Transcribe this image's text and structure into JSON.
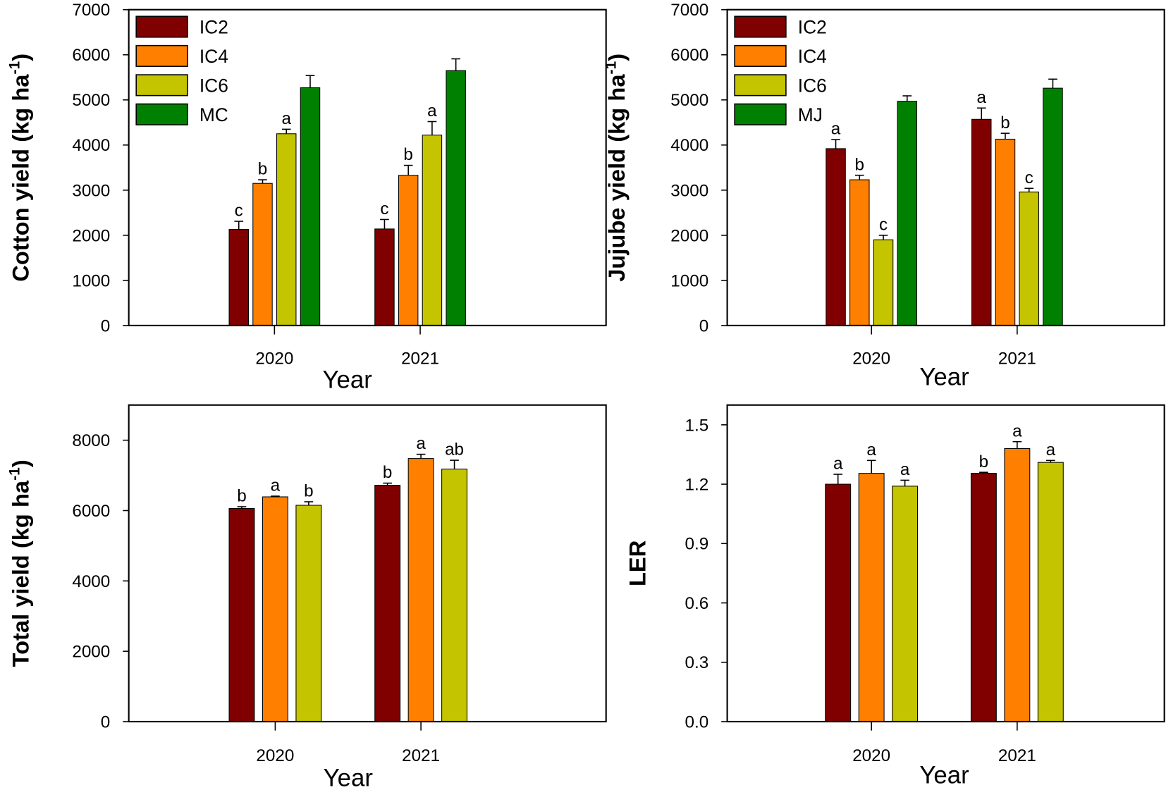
{
  "colors": {
    "IC2": "#800000",
    "IC4": "#ff8000",
    "IC6": "#c4c400",
    "mono": "#008000"
  },
  "chart_data": [
    {
      "type": "bar",
      "id": "cotton",
      "ylabel": "Cotton yield (kg ha",
      "ylabel_sup": "-1",
      "ylabel_end": ")",
      "xlabel": "Year",
      "categories": [
        "2020",
        "2021"
      ],
      "ylim": [
        0,
        7000
      ],
      "yticks": [
        0,
        1000,
        2000,
        3000,
        4000,
        5000,
        6000,
        7000
      ],
      "legend": "top-left",
      "series": [
        {
          "name": "IC2",
          "color_key": "IC2",
          "values": [
            2130,
            2140
          ],
          "errors": [
            180,
            210
          ],
          "letters": [
            "c",
            "c"
          ]
        },
        {
          "name": "IC4",
          "color_key": "IC4",
          "values": [
            3150,
            3330
          ],
          "errors": [
            80,
            220
          ],
          "letters": [
            "b",
            "b"
          ]
        },
        {
          "name": "IC6",
          "color_key": "IC6",
          "values": [
            4250,
            4220
          ],
          "errors": [
            100,
            300
          ],
          "letters": [
            "a",
            "a"
          ]
        },
        {
          "name": "MC",
          "color_key": "mono",
          "values": [
            5270,
            5650
          ],
          "errors": [
            270,
            260
          ],
          "letters": [
            "",
            ""
          ]
        }
      ]
    },
    {
      "type": "bar",
      "id": "jujube",
      "ylabel": "Jujube yield (kg ha",
      "ylabel_sup": "-1",
      "ylabel_end": ")",
      "xlabel": "Year",
      "categories": [
        "2020",
        "2021"
      ],
      "ylim": [
        0,
        7000
      ],
      "yticks": [
        0,
        1000,
        2000,
        3000,
        4000,
        5000,
        6000,
        7000
      ],
      "legend": "top-left",
      "series": [
        {
          "name": "IC2",
          "color_key": "IC2",
          "values": [
            3920,
            4570
          ],
          "errors": [
            200,
            250
          ],
          "letters": [
            "a",
            "a"
          ]
        },
        {
          "name": "IC4",
          "color_key": "IC4",
          "values": [
            3230,
            4130
          ],
          "errors": [
            100,
            130
          ],
          "letters": [
            "b",
            "b"
          ]
        },
        {
          "name": "IC6",
          "color_key": "IC6",
          "values": [
            1900,
            2960
          ],
          "errors": [
            100,
            80
          ],
          "letters": [
            "c",
            "c"
          ]
        },
        {
          "name": "MJ",
          "color_key": "mono",
          "values": [
            4970,
            5260
          ],
          "errors": [
            120,
            200
          ],
          "letters": [
            "",
            ""
          ]
        }
      ]
    },
    {
      "type": "bar",
      "id": "total",
      "ylabel": "Total yield (kg ha",
      "ylabel_sup": "-1",
      "ylabel_end": ")",
      "xlabel": "Year",
      "categories": [
        "2020",
        "2021"
      ],
      "ylim": [
        0,
        9000
      ],
      "yticks": [
        0,
        2000,
        4000,
        6000,
        8000
      ],
      "legend": "none",
      "series": [
        {
          "name": "IC2",
          "color_key": "IC2",
          "values": [
            6060,
            6720
          ],
          "errors": [
            50,
            60
          ],
          "letters": [
            "b",
            "b"
          ]
        },
        {
          "name": "IC4",
          "color_key": "IC4",
          "values": [
            6390,
            7480
          ],
          "errors": [
            20,
            120
          ],
          "letters": [
            "a",
            "a"
          ]
        },
        {
          "name": "IC6",
          "color_key": "IC6",
          "values": [
            6150,
            7180
          ],
          "errors": [
            100,
            250
          ],
          "letters": [
            "b",
            "ab"
          ]
        }
      ]
    },
    {
      "type": "bar",
      "id": "ler",
      "ylabel": "LER",
      "ylabel_sup": "",
      "ylabel_end": "",
      "xlabel": "Year",
      "categories": [
        "2020",
        "2021"
      ],
      "ylim": [
        0,
        1.6
      ],
      "yticks": [
        "0.0",
        "0.3",
        "0.6",
        "0.9",
        "1.2",
        "1.5"
      ],
      "legend": "none",
      "series": [
        {
          "name": "IC2",
          "color_key": "IC2",
          "values": [
            1.2,
            1.255
          ],
          "errors": [
            0.05,
            0.005
          ],
          "letters": [
            "a",
            "b"
          ]
        },
        {
          "name": "IC4",
          "color_key": "IC4",
          "values": [
            1.255,
            1.38
          ],
          "errors": [
            0.065,
            0.035
          ],
          "letters": [
            "a",
            "a"
          ]
        },
        {
          "name": "IC6",
          "color_key": "IC6",
          "values": [
            1.19,
            1.31
          ],
          "errors": [
            0.03,
            0.01
          ],
          "letters": [
            "a",
            "a"
          ]
        }
      ]
    }
  ]
}
